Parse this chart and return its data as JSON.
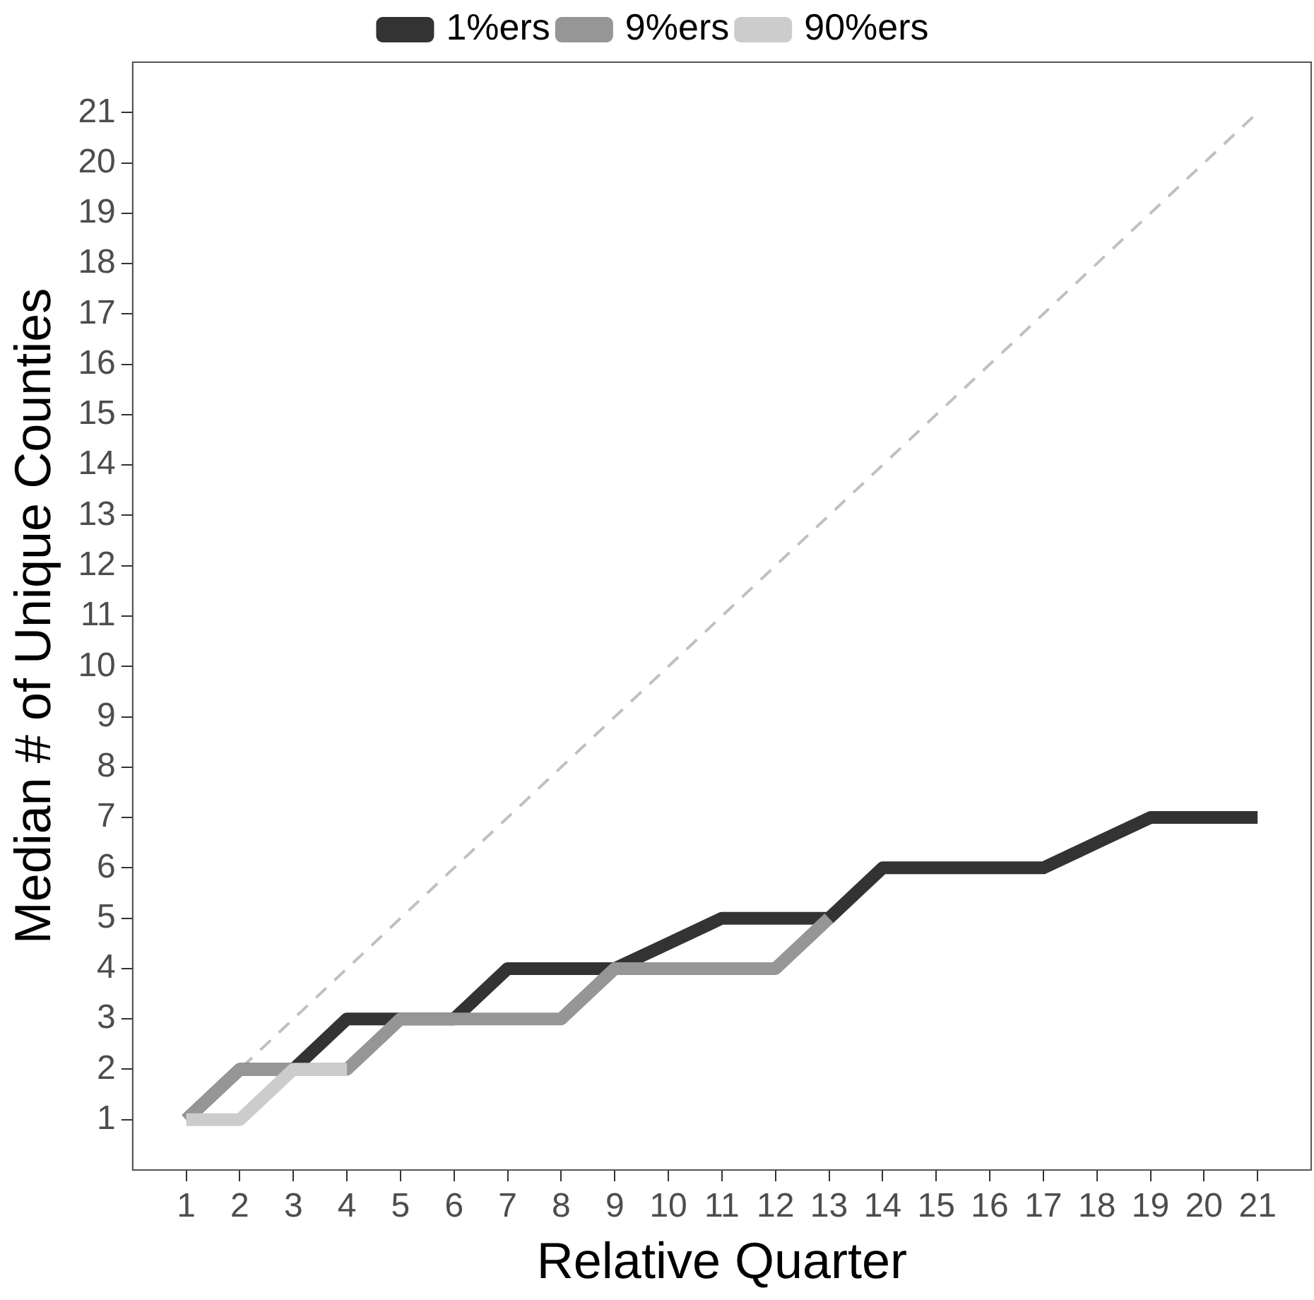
{
  "chart_data": {
    "type": "line",
    "xlabel": "Relative Quarter",
    "ylabel": "Median # of Unique Counties",
    "x": [
      1,
      2,
      3,
      4,
      5,
      6,
      7,
      8,
      9,
      10,
      11,
      12,
      13,
      14,
      15,
      16,
      17,
      18,
      19,
      20,
      21
    ],
    "series": [
      {
        "type": "line",
        "x": [
          1,
          21
        ],
        "values": [
          1,
          21
        ],
        "color": "#c0c0c0",
        "line_style": "dashed"
      },
      {
        "name": "1%ers",
        "color": "#333333",
        "values": [
          1,
          2,
          2,
          3,
          3,
          3,
          4,
          4,
          4,
          4.5,
          5,
          5,
          5,
          6,
          6,
          6,
          6,
          6.5,
          7,
          7,
          7
        ]
      },
      {
        "name": "9%ers",
        "color": "#969696",
        "values": [
          1,
          2,
          2,
          2,
          3,
          3,
          3,
          3,
          4,
          4,
          4,
          4,
          5,
          null,
          null,
          null,
          null,
          null,
          null,
          null,
          null
        ]
      },
      {
        "name": "90%ers",
        "color": "#cccccc",
        "values": [
          1,
          1,
          2,
          2,
          null,
          null,
          null,
          null,
          null,
          null,
          null,
          null,
          null,
          null,
          null,
          null,
          null,
          null,
          null,
          null,
          null
        ]
      }
    ],
    "xlim": [
      0,
      22
    ],
    "xticks": [
      1,
      2,
      3,
      4,
      5,
      6,
      7,
      8,
      9,
      10,
      11,
      12,
      13,
      14,
      15,
      16,
      17,
      18,
      19,
      20,
      21
    ],
    "ylim": [
      0,
      22
    ],
    "yticks": [
      1,
      2,
      3,
      4,
      5,
      6,
      7,
      8,
      9,
      10,
      11,
      12,
      13,
      14,
      15,
      16,
      17,
      18,
      19,
      20,
      21
    ],
    "grid": false,
    "legend": "top",
    "marker": "none",
    "line_style": "solid"
  }
}
